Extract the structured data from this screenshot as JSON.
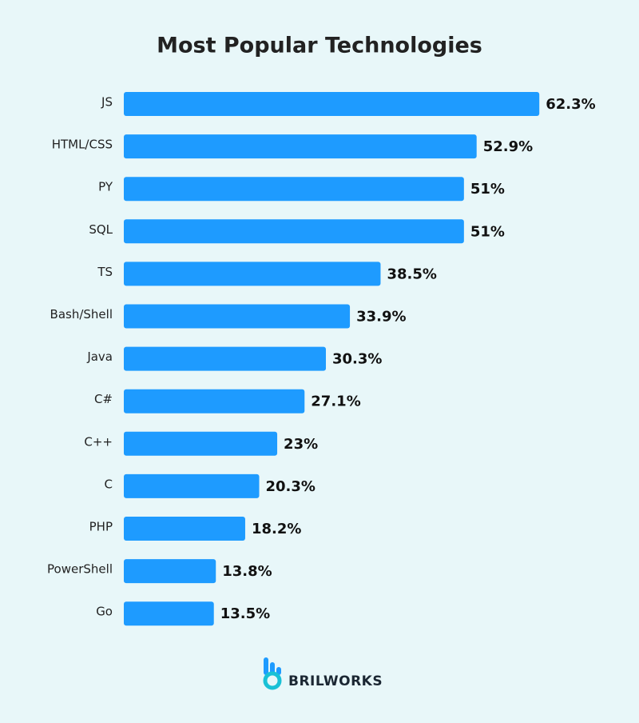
{
  "chart_data": {
    "type": "bar",
    "orientation": "horizontal",
    "title": "Most Popular Technologies",
    "categories": [
      "JS",
      "HTML/CSS",
      "PY",
      "SQL",
      "TS",
      "Bash/Shell",
      "Java",
      "C#",
      "C++",
      "C",
      "PHP",
      "PowerShell",
      "Go"
    ],
    "values": [
      62.3,
      52.9,
      51,
      51,
      38.5,
      33.9,
      30.3,
      27.1,
      23,
      20.3,
      18.2,
      13.8,
      13.5
    ],
    "value_labels": [
      "62.3%",
      "52.9%",
      "51%",
      "51%",
      "38.5%",
      "33.9%",
      "30.3%",
      "27.1%",
      "23%",
      "20.3%",
      "18.2%",
      "13.8%",
      "13.5%"
    ],
    "color": "#1e9bff"
  },
  "logo": {
    "text": "BRILWORKS"
  }
}
